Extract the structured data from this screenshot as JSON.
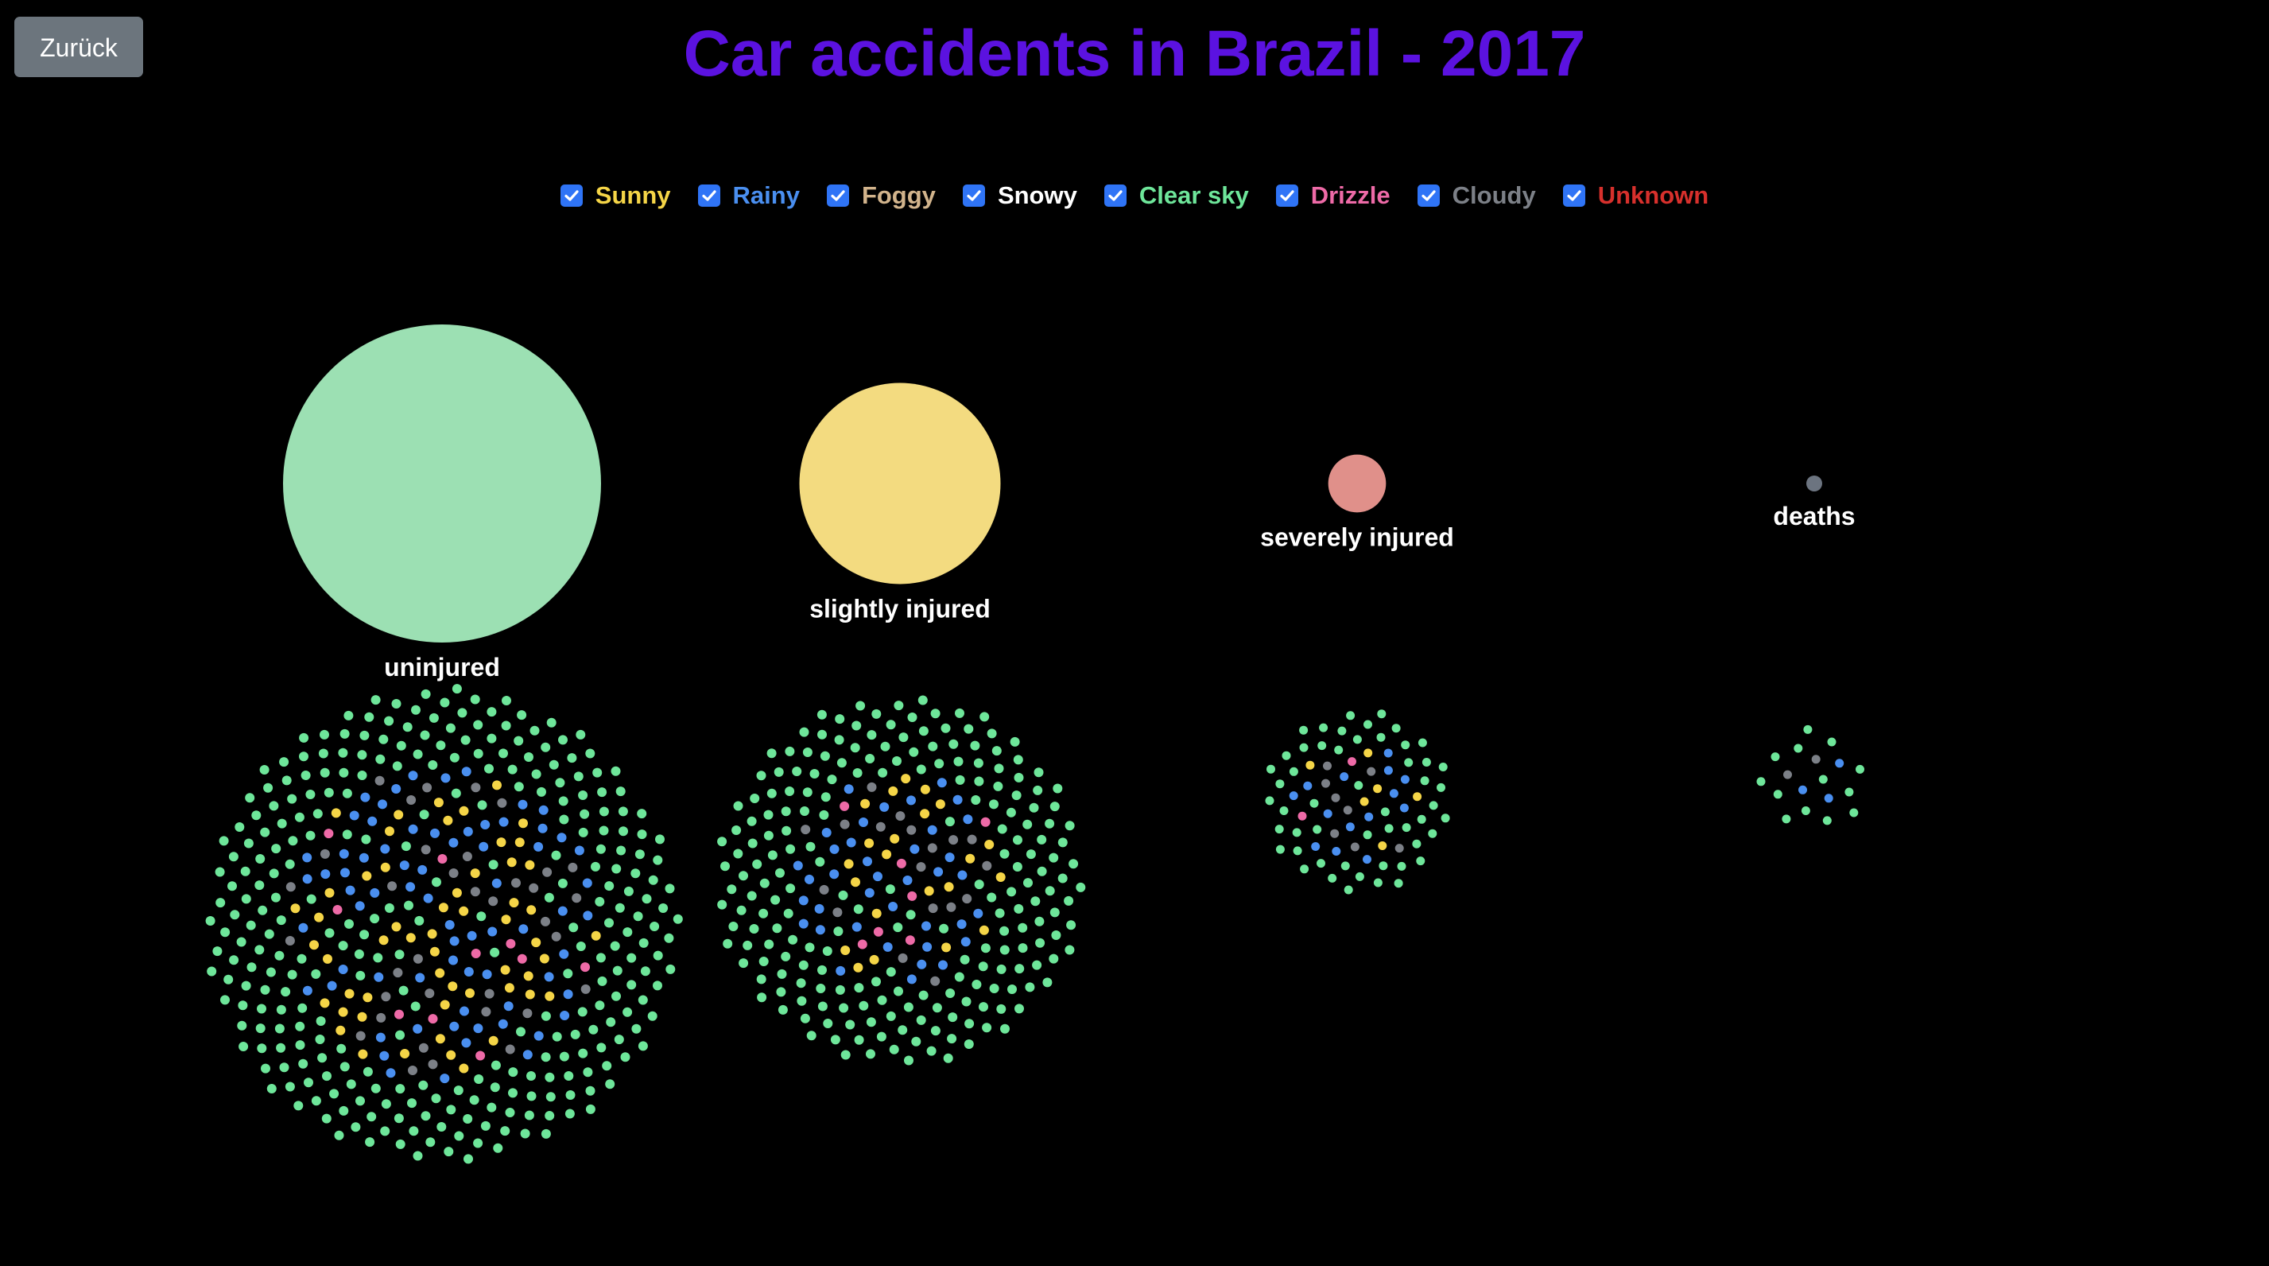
{
  "nav": {
    "back_label": "Zurück"
  },
  "title": "Car accidents in Brazil - 2017",
  "legend": [
    {
      "label": "Sunny",
      "color": "#f5d547",
      "checked": true
    },
    {
      "label": "Rainy",
      "color": "#4a8ff0",
      "checked": true
    },
    {
      "label": "Foggy",
      "color": "#d2b48c",
      "checked": true
    },
    {
      "label": "Snowy",
      "color": "#ffffff",
      "checked": true
    },
    {
      "label": "Clear sky",
      "color": "#6ee69a",
      "checked": true
    },
    {
      "label": "Drizzle",
      "color": "#ee6aa7",
      "checked": true
    },
    {
      "label": "Cloudy",
      "color": "#7c8087",
      "checked": true
    },
    {
      "label": "Unknown",
      "color": "#d7302c",
      "checked": true
    }
  ],
  "chart_data": {
    "type": "bubble-swarm",
    "title": "Car accidents in Brazil - 2017",
    "categories": [
      "uninjured",
      "slightly injured",
      "severely injured",
      "deaths"
    ],
    "bubble_colors": [
      "#9ce0b3",
      "#f3db80",
      "#e0908a",
      "#6c7480"
    ],
    "relative_size": [
      1.0,
      0.4,
      0.033,
      0.0025
    ],
    "dot_counts": [
      {
        "category": "uninjured",
        "total": 470,
        "mix": {
          "Clear sky": 300,
          "Rainy": 70,
          "Sunny": 55,
          "Cloudy": 35,
          "Drizzle": 10
        }
      },
      {
        "category": "slightly injured",
        "total": 300,
        "mix": {
          "Clear sky": 215,
          "Rainy": 38,
          "Sunny": 22,
          "Cloudy": 18,
          "Drizzle": 7
        }
      },
      {
        "category": "severely injured",
        "total": 82,
        "mix": {
          "Clear sky": 52,
          "Rainy": 14,
          "Sunny": 6,
          "Cloudy": 8,
          "Drizzle": 2
        }
      },
      {
        "category": "deaths",
        "total": 18,
        "mix": {
          "Clear sky": 13,
          "Rainy": 3,
          "Cloudy": 2
        }
      }
    ]
  }
}
